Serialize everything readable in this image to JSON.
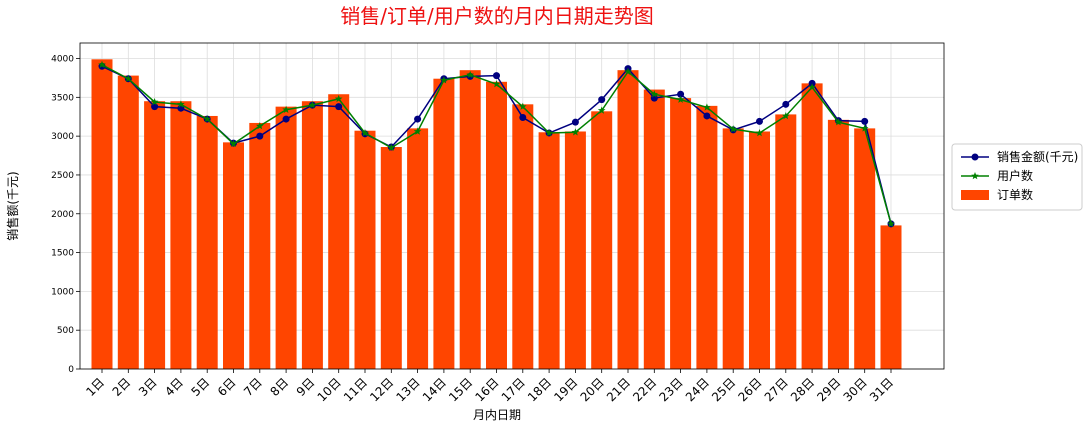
{
  "chart_data": {
    "type": "bar",
    "title": "销售/订单/用户数的月内日期走势图",
    "xlabel": "月内日期",
    "ylabel": "销售额(千元)",
    "ylim": [
      0,
      4200
    ],
    "yticks": [
      0,
      500,
      1000,
      1500,
      2000,
      2500,
      3000,
      3500,
      4000
    ],
    "grid": true,
    "legend_position": "right",
    "categories": [
      "1日",
      "2日",
      "3日",
      "4日",
      "5日",
      "6日",
      "7日",
      "8日",
      "9日",
      "10日",
      "11日",
      "12日",
      "13日",
      "14日",
      "15日",
      "16日",
      "17日",
      "18日",
      "19日",
      "20日",
      "21日",
      "22日",
      "23日",
      "24日",
      "25日",
      "26日",
      "27日",
      "28日",
      "29日",
      "30日",
      "31日"
    ],
    "series": [
      {
        "name": "订单数",
        "type": "bar",
        "color": "#ff4500",
        "values": [
          3990,
          3780,
          3450,
          3450,
          3260,
          2920,
          3170,
          3380,
          3450,
          3540,
          3070,
          2860,
          3100,
          3740,
          3850,
          3700,
          3410,
          3050,
          3060,
          3320,
          3850,
          3600,
          3490,
          3390,
          3100,
          3060,
          3280,
          3680,
          3210,
          3100,
          1850
        ]
      },
      {
        "name": "销售金额(千元)",
        "type": "line",
        "marker": "circle",
        "color": "#000080",
        "values": [
          3900,
          3740,
          3380,
          3360,
          3220,
          2910,
          3000,
          3220,
          3400,
          3380,
          3030,
          2860,
          3220,
          3740,
          3770,
          3780,
          3240,
          3040,
          3180,
          3470,
          3870,
          3490,
          3540,
          3260,
          3080,
          3190,
          3410,
          3680,
          3200,
          3190,
          1870
        ]
      },
      {
        "name": "用户数",
        "type": "line",
        "marker": "star",
        "color": "#008000",
        "values": [
          3920,
          3740,
          3440,
          3410,
          3220,
          2900,
          3130,
          3340,
          3400,
          3480,
          3040,
          2850,
          3060,
          3720,
          3790,
          3670,
          3380,
          3040,
          3050,
          3330,
          3830,
          3540,
          3470,
          3370,
          3090,
          3040,
          3260,
          3630,
          3180,
          3100,
          1870
        ]
      }
    ]
  }
}
